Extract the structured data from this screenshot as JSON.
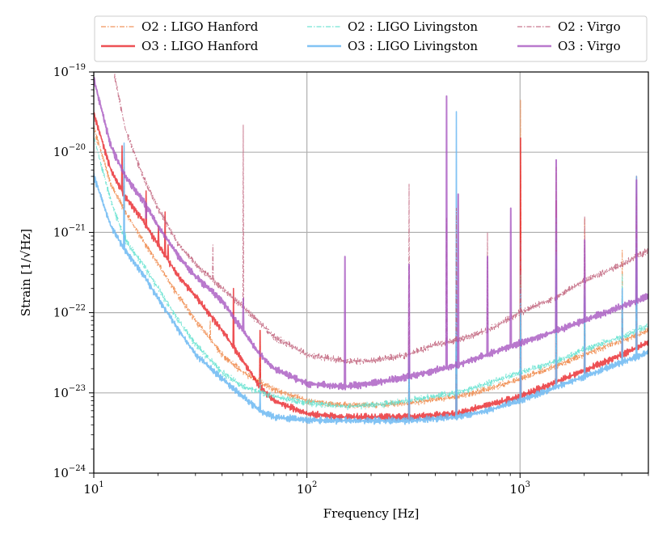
{
  "chart_data": {
    "type": "line",
    "title": "",
    "xlabel": "Frequency [Hz]",
    "ylabel": "Strain [1/√Hz]",
    "xscale": "log",
    "yscale": "log",
    "xlim": [
      10,
      4000
    ],
    "ylim": [
      1e-24,
      1e-19
    ],
    "grid": true,
    "legend_position": "top",
    "x_ticks": [
      {
        "value": 10,
        "base": "10",
        "exp": "1"
      },
      {
        "value": 100,
        "base": "10",
        "exp": "2"
      },
      {
        "value": 1000,
        "base": "10",
        "exp": "3"
      }
    ],
    "y_ticks": [
      {
        "value": 1e-24,
        "base": "10",
        "exp": "−24"
      },
      {
        "value": 1e-23,
        "base": "10",
        "exp": "−23"
      },
      {
        "value": 1e-22,
        "base": "10",
        "exp": "−22"
      },
      {
        "value": 1e-21,
        "base": "10",
        "exp": "−21"
      },
      {
        "value": 1e-20,
        "base": "10",
        "exp": "−20"
      },
      {
        "value": 1e-19,
        "base": "10",
        "exp": "−19"
      }
    ],
    "series": [
      {
        "name": "O2 : LIGO Hanford",
        "color": "#f08a4b",
        "style": "dashdot",
        "width": 1.0,
        "opacity": 0.9,
        "x": [
          10,
          12,
          14,
          17,
          20,
          25,
          30,
          40,
          50,
          70,
          100,
          150,
          200,
          300,
          500,
          700,
          1000,
          1500,
          2000,
          3000,
          4000
        ],
        "y": [
          2e-20,
          4e-21,
          1.8e-21,
          8e-22,
          4e-22,
          1.6e-22,
          8e-23,
          3e-23,
          1.8e-23,
          1.1e-23,
          8e-24,
          7e-24,
          7e-24,
          7.5e-24,
          9e-24,
          1.1e-23,
          1.5e-23,
          2.2e-23,
          3e-23,
          4.5e-23,
          6e-23
        ],
        "peaks": [
          [
            13.8,
            1.2e-20
          ],
          [
            35,
            8e-23
          ],
          [
            60,
            6e-23
          ],
          [
            300,
            5e-23
          ],
          [
            500,
            2e-21
          ],
          [
            1000,
            4.5e-20
          ],
          [
            1470,
            6.5e-21
          ],
          [
            2000,
            1.5e-21
          ],
          [
            3000,
            6e-22
          ],
          [
            3500,
            3e-21
          ]
        ]
      },
      {
        "name": "O3 : LIGO Hanford",
        "color": "#e8262a",
        "style": "solid",
        "width": 1.6,
        "opacity": 0.8,
        "x": [
          10,
          12,
          14,
          17,
          20,
          25,
          30,
          40,
          50,
          60,
          70,
          100,
          150,
          200,
          300,
          500,
          700,
          1000,
          1500,
          2000,
          3000,
          4000
        ],
        "y": [
          3e-20,
          6e-21,
          2.8e-21,
          1.4e-21,
          7e-22,
          2.8e-22,
          1.6e-22,
          6e-23,
          2.5e-23,
          1.2e-23,
          8e-24,
          5.5e-24,
          5e-24,
          5e-24,
          5e-24,
          5.5e-24,
          7e-24,
          9e-24,
          1.4e-23,
          1.9e-23,
          3e-23,
          4.3e-23
        ],
        "peaks": [
          [
            13.5,
            1.2e-20
          ],
          [
            17.5,
            3.3e-21
          ],
          [
            20,
            1.2e-21
          ],
          [
            21.5,
            1.8e-21
          ],
          [
            22.2,
            7e-22
          ],
          [
            45,
            2e-22
          ],
          [
            60,
            6e-23
          ],
          [
            300,
            2e-23
          ],
          [
            500,
            1.6e-22
          ],
          [
            1000,
            1.5e-20
          ],
          [
            1470,
            2.5e-21
          ],
          [
            2000,
            8e-23
          ],
          [
            3000,
            1.2e-22
          ],
          [
            3500,
            5e-21
          ]
        ]
      },
      {
        "name": "O2 : LIGO Livingston",
        "color": "#66e2d0",
        "style": "dashdot",
        "width": 1.0,
        "opacity": 0.9,
        "x": [
          10,
          12,
          14,
          17,
          20,
          25,
          30,
          40,
          50,
          70,
          100,
          150,
          200,
          300,
          500,
          700,
          1000,
          1500,
          2000,
          3000,
          4000
        ],
        "y": [
          1.5e-20,
          2.5e-21,
          8e-22,
          4e-22,
          2e-22,
          8e-23,
          4e-23,
          1.8e-23,
          1.2e-23,
          9e-24,
          7.5e-24,
          6.8e-24,
          7e-24,
          8e-24,
          1e-23,
          1.3e-23,
          1.8e-23,
          2.5e-23,
          3.5e-23,
          5e-23,
          7e-23
        ],
        "peaks": [
          [
            14,
            1e-21
          ],
          [
            60,
            1.5e-23
          ],
          [
            300,
            3e-23
          ],
          [
            500,
            2e-22
          ],
          [
            1000,
            3e-22
          ],
          [
            1470,
            1.5e-21
          ],
          [
            2000,
            2e-22
          ],
          [
            3000,
            3e-22
          ],
          [
            3500,
            2e-21
          ]
        ]
      },
      {
        "name": "O3 : LIGO Livingston",
        "color": "#6cb8f2",
        "style": "solid",
        "width": 1.6,
        "opacity": 0.85,
        "x": [
          10,
          12,
          14,
          17,
          20,
          25,
          30,
          40,
          50,
          60,
          70,
          100,
          150,
          200,
          300,
          500,
          700,
          1000,
          1500,
          2000,
          3000,
          4000
        ],
        "y": [
          5e-21,
          1.2e-21,
          6e-22,
          3e-22,
          1.5e-22,
          6e-23,
          3e-23,
          1.5e-23,
          9e-24,
          6e-24,
          5e-24,
          4.6e-24,
          4.5e-24,
          4.5e-24,
          4.5e-24,
          5e-24,
          6e-24,
          8e-24,
          1.2e-23,
          1.6e-23,
          2.4e-23,
          3.2e-23
        ],
        "peaks": [
          [
            13.8,
            1.3e-20
          ],
          [
            60,
            1e-23
          ],
          [
            300,
            3e-23
          ],
          [
            500,
            3.2e-20
          ],
          [
            1000,
            2e-22
          ],
          [
            1470,
            5e-22
          ],
          [
            2000,
            1.5e-22
          ],
          [
            3000,
            2e-22
          ],
          [
            3500,
            5e-21
          ]
        ]
      },
      {
        "name": "O2 : Virgo",
        "color": "#c0607a",
        "style": "dashdot",
        "width": 1.0,
        "opacity": 0.85,
        "x": [
          12.5,
          14,
          17,
          20,
          25,
          30,
          40,
          50,
          70,
          100,
          150,
          200,
          300,
          400,
          500,
          700,
          1000,
          1500,
          2000,
          3000,
          4000
        ],
        "y": [
          9e-20,
          2e-20,
          5e-21,
          2e-21,
          7e-22,
          4e-22,
          2e-22,
          1.2e-22,
          5e-23,
          3e-23,
          2.5e-23,
          2.5e-23,
          3e-23,
          4e-23,
          4.5e-23,
          6e-23,
          1e-22,
          1.6e-22,
          2.5e-22,
          4e-22,
          6e-22
        ],
        "peaks": [
          [
            36,
            7e-22
          ],
          [
            50,
            2.2e-20
          ],
          [
            300,
            4e-21
          ],
          [
            450,
            1.5e-21
          ],
          [
            500,
            2e-21
          ],
          [
            700,
            1e-21
          ],
          [
            1000,
            8e-22
          ],
          [
            2000,
            1.6e-21
          ],
          [
            3500,
            3e-21
          ]
        ]
      },
      {
        "name": "O3 : Virgo",
        "color": "#a757c0",
        "style": "solid",
        "width": 2.0,
        "opacity": 0.8,
        "x": [
          10,
          12,
          14,
          17,
          20,
          25,
          30,
          40,
          50,
          60,
          70,
          100,
          150,
          200,
          300,
          500,
          700,
          1000,
          1500,
          2000,
          3000,
          4000
        ],
        "y": [
          8e-20,
          1.2e-20,
          5e-21,
          2.5e-21,
          1.2e-21,
          5e-22,
          2.8e-22,
          1.4e-22,
          6e-23,
          3e-23,
          2e-23,
          1.3e-23,
          1.2e-23,
          1.3e-23,
          1.6e-23,
          2.2e-23,
          3e-23,
          4.2e-23,
          6e-23,
          8e-23,
          1.2e-22,
          1.6e-22
        ],
        "peaks": [
          [
            17.5,
            1.5e-21
          ],
          [
            50,
            1.5e-22
          ],
          [
            150,
            5e-22
          ],
          [
            300,
            4e-22
          ],
          [
            450,
            5e-20
          ],
          [
            510,
            3e-21
          ],
          [
            700,
            5e-22
          ],
          [
            900,
            2e-21
          ],
          [
            1470,
            8e-21
          ],
          [
            2000,
            8e-22
          ],
          [
            3500,
            4.5e-21
          ]
        ]
      }
    ]
  }
}
